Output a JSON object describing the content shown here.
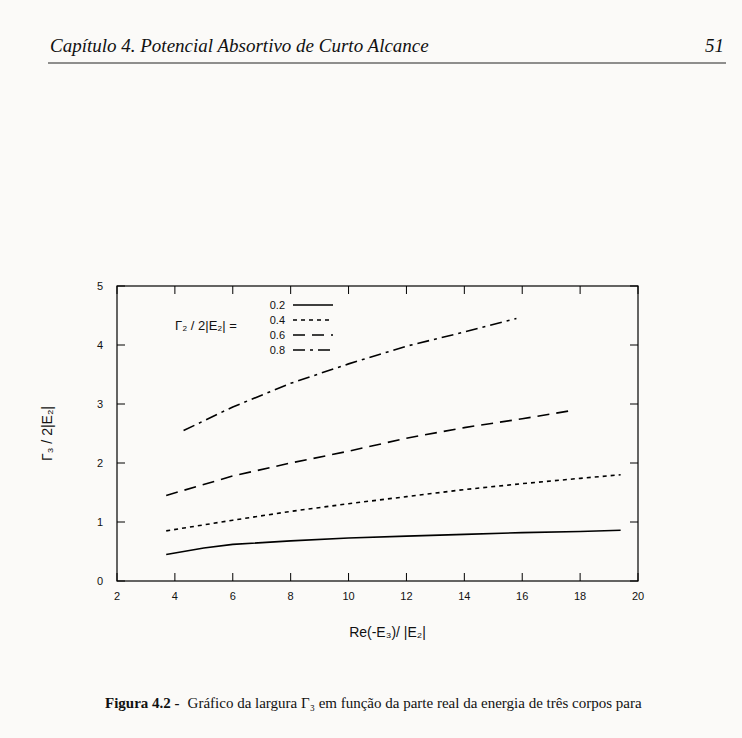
{
  "header": {
    "chapter": "Capítulo 4.  Potencial Absortivo de Curto Alcance",
    "page_number": "51"
  },
  "chart_data": {
    "type": "line",
    "x_label": "Re(-E₃)/ |E₂|",
    "y_label": "Γ₃ / 2|E₂|",
    "legend_title": "Γ₂ / 2|E₂|  =",
    "legend": "top-left",
    "xlim": [
      2,
      20
    ],
    "ylim": [
      0,
      5
    ],
    "xticks": [
      2,
      4,
      6,
      8,
      10,
      12,
      14,
      16,
      18,
      20
    ],
    "yticks": [
      0,
      1,
      2,
      3,
      4,
      5
    ],
    "grid": false,
    "series": [
      {
        "name": "0.2",
        "color": "#000000",
        "line_style": "solid",
        "x": [
          3.7,
          5,
          6,
          8,
          10,
          12,
          14,
          16,
          18,
          19.4
        ],
        "values": [
          0.45,
          0.56,
          0.62,
          0.68,
          0.73,
          0.76,
          0.79,
          0.82,
          0.84,
          0.86
        ]
      },
      {
        "name": "0.4",
        "color": "#000000",
        "line_style": "dotted",
        "x": [
          3.7,
          6,
          8,
          10,
          12,
          14,
          16,
          18,
          19.4
        ],
        "values": [
          0.85,
          1.03,
          1.18,
          1.31,
          1.43,
          1.55,
          1.65,
          1.74,
          1.8
        ]
      },
      {
        "name": "0.6",
        "color": "#000000",
        "line_style": "dashed",
        "x": [
          3.7,
          6,
          8,
          10,
          12,
          14,
          16,
          17.6
        ],
        "values": [
          1.45,
          1.78,
          2.0,
          2.2,
          2.42,
          2.6,
          2.75,
          2.88
        ]
      },
      {
        "name": "0.8",
        "color": "#000000",
        "line_style": "dash-dot",
        "x": [
          4.3,
          6,
          8,
          10,
          12,
          14,
          15.8
        ],
        "values": [
          2.55,
          2.95,
          3.35,
          3.68,
          3.98,
          4.22,
          4.45
        ]
      }
    ]
  },
  "caption": {
    "label": "Figura 4.2 -",
    "text": "Gráfico da largura Γ₃ em função da parte real da energia de três corpos para"
  }
}
